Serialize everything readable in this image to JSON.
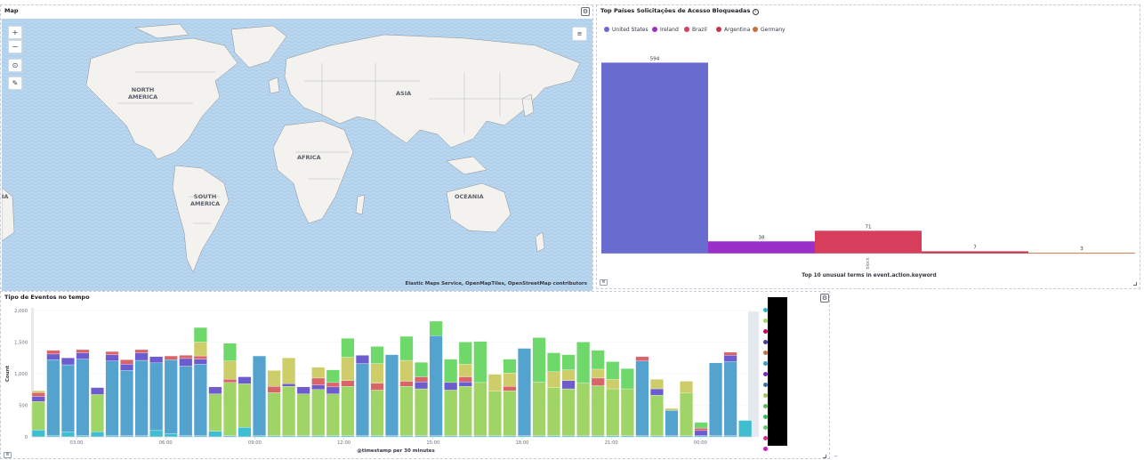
{
  "map_panel": {
    "title": "Map",
    "attribution": "Elastic Maps Service, OpenMapTiles, OpenStreetMap contributors",
    "continents": [
      "NORTH\nAMERICA",
      "ASIA",
      "AFRICA",
      "SOUTH\nAMERICA",
      "OCEANIA",
      "IA"
    ],
    "controls": {
      "zoom_in": "+",
      "zoom_out": "−",
      "reset": "⊙",
      "draw": "✎",
      "layers": "≡"
    }
  },
  "bar_panel": {
    "title": "Top Países Solicitações de Acesso Bloqueadas",
    "legend_icon": "≡",
    "colors": {
      "United States": "#6a6bcf",
      "Ireland": "#9b30c9",
      "Brazil": "#d63e5c",
      "Argentina": "#c8354c",
      "Germany": "#c7723c"
    }
  },
  "time_panel": {
    "title": "Tipo de Eventos no tempo",
    "legend_icon": "≡",
    "ylabel": "Count",
    "xlabel": "@timestamp per 30 minutes",
    "legend_colors": [
      "#2fb6c9",
      "#a3d95d",
      "#c10868",
      "#4a3a9c",
      "#c7723c",
      "#34a0c2",
      "#7a2bb8",
      "#3d6fb3",
      "#a8c84a",
      "#5ac15a",
      "#2fc05b",
      "#5cd06a",
      "#d12e91",
      "#c81ec4"
    ],
    "series_colors": {
      "teal": "#40bed1",
      "green": "#9fd467",
      "blue": "#54a3cf",
      "purple": "#6c5ccd",
      "red": "#d9646a",
      "olive": "#cdcd6a",
      "lime": "#6fd86b"
    }
  },
  "chart_data": [
    {
      "type": "bar",
      "title": "Top Países Solicitações de Acesso Bloqueadas",
      "xlabel": "Top 10 unusual terms in event.action.keyword",
      "categories": [
        "block"
      ],
      "series": [
        {
          "name": "United States",
          "values": [
            594
          ]
        },
        {
          "name": "Ireland",
          "values": [
            38
          ]
        },
        {
          "name": "Brazil",
          "values": [
            71
          ]
        },
        {
          "name": "Argentina",
          "values": [
            7
          ]
        },
        {
          "name": "Germany",
          "values": [
            3
          ]
        }
      ],
      "ylim": [
        0,
        620
      ]
    },
    {
      "type": "bar",
      "title": "Tipo de Eventos no tempo",
      "xlabel": "@timestamp per 30 minutes",
      "ylabel": "Count",
      "ylim": [
        0,
        2000
      ],
      "yticks": [
        "0",
        "500",
        "1,000",
        "1,500",
        "2,000"
      ],
      "xticks": [
        "03:00",
        "06:00",
        "09:00",
        "12:00",
        "15:00",
        "18:00",
        "21:00",
        "00:00"
      ],
      "stacked_bars": [
        {
          "teal": 110,
          "green": 450,
          "blue": 0,
          "purple": 80,
          "red": 60,
          "olive": 30,
          "lime": 0
        },
        {
          "teal": 20,
          "green": 0,
          "blue": 1200,
          "purple": 90,
          "red": 60,
          "olive": 0,
          "lime": 0
        },
        {
          "teal": 80,
          "green": 0,
          "blue": 1060,
          "purple": 110,
          "red": 0,
          "olive": 0,
          "lime": 0
        },
        {
          "teal": 20,
          "green": 0,
          "blue": 1210,
          "purple": 100,
          "red": 50,
          "olive": 0,
          "lime": 0
        },
        {
          "teal": 80,
          "green": 590,
          "blue": 0,
          "purple": 110,
          "red": 0,
          "olive": 0,
          "lime": 0
        },
        {
          "teal": 20,
          "green": 0,
          "blue": 1180,
          "purple": 100,
          "red": 50,
          "olive": 0,
          "lime": 0
        },
        {
          "teal": 20,
          "green": 0,
          "blue": 1030,
          "purple": 100,
          "red": 70,
          "olive": 0,
          "lime": 0
        },
        {
          "teal": 20,
          "green": 0,
          "blue": 1190,
          "purple": 120,
          "red": 50,
          "olive": 0,
          "lime": 0
        },
        {
          "teal": 100,
          "green": 0,
          "blue": 1070,
          "purple": 100,
          "red": 0,
          "olive": 0,
          "lime": 0
        },
        {
          "teal": 50,
          "green": 0,
          "blue": 1170,
          "purple": 0,
          "red": 60,
          "olive": 0,
          "lime": 0
        },
        {
          "teal": 20,
          "green": 0,
          "blue": 1100,
          "purple": 120,
          "red": 50,
          "olive": 0,
          "lime": 0
        },
        {
          "teal": 20,
          "green": 0,
          "blue": 1130,
          "purple": 80,
          "red": 50,
          "olive": 220,
          "lime": 230
        },
        {
          "teal": 90,
          "green": 590,
          "blue": 0,
          "purple": 110,
          "red": 0,
          "olive": 0,
          "lime": 0
        },
        {
          "teal": 20,
          "green": 840,
          "blue": 0,
          "purple": 0,
          "red": 50,
          "olive": 290,
          "lime": 280
        },
        {
          "teal": 150,
          "green": 690,
          "blue": 0,
          "purple": 110,
          "red": 0,
          "olive": 0,
          "lime": 0
        },
        {
          "teal": 20,
          "green": 0,
          "blue": 1260,
          "purple": 0,
          "red": 0,
          "olive": 0,
          "lime": 0
        },
        {
          "teal": 20,
          "green": 680,
          "blue": 0,
          "purple": 0,
          "red": 100,
          "olive": 250,
          "lime": 0
        },
        {
          "teal": 20,
          "green": 780,
          "blue": 0,
          "purple": 40,
          "red": 0,
          "olive": 410,
          "lime": 0
        },
        {
          "teal": 20,
          "green": 660,
          "blue": 0,
          "purple": 110,
          "red": 0,
          "olive": 0,
          "lime": 0
        },
        {
          "teal": 20,
          "green": 730,
          "blue": 0,
          "purple": 70,
          "red": 110,
          "olive": 170,
          "lime": 0
        },
        {
          "teal": 20,
          "green": 660,
          "blue": 0,
          "purple": 110,
          "red": 70,
          "olive": 0,
          "lime": 200
        },
        {
          "teal": 20,
          "green": 780,
          "blue": 0,
          "purple": 0,
          "red": 90,
          "olive": 370,
          "lime": 300
        },
        {
          "teal": 20,
          "green": 0,
          "blue": 1140,
          "purple": 130,
          "red": 0,
          "olive": 0,
          "lime": 0
        },
        {
          "teal": 20,
          "green": 720,
          "blue": 0,
          "purple": 0,
          "red": 110,
          "olive": 310,
          "lime": 270
        },
        {
          "teal": 20,
          "green": 0,
          "blue": 1280,
          "purple": 0,
          "red": 0,
          "olive": 0,
          "lime": 0
        },
        {
          "teal": 20,
          "green": 780,
          "blue": 0,
          "purple": 0,
          "red": 80,
          "olive": 330,
          "lime": 380
        },
        {
          "teal": 20,
          "green": 740,
          "blue": 0,
          "purple": 110,
          "red": 80,
          "olive": 0,
          "lime": 230
        },
        {
          "teal": 20,
          "green": 0,
          "blue": 1580,
          "purple": 0,
          "red": 0,
          "olive": 0,
          "lime": 230
        },
        {
          "teal": 20,
          "green": 720,
          "blue": 0,
          "purple": 120,
          "red": 0,
          "olive": 0,
          "lime": 370
        },
        {
          "teal": 20,
          "green": 780,
          "blue": 0,
          "purple": 70,
          "red": 80,
          "olive": 200,
          "lime": 350
        },
        {
          "teal": 20,
          "green": 840,
          "blue": 0,
          "purple": 0,
          "red": 0,
          "olive": 0,
          "lime": 650
        },
        {
          "teal": 20,
          "green": 700,
          "blue": 0,
          "purple": 0,
          "red": 0,
          "olive": 270,
          "lime": 0
        },
        {
          "teal": 20,
          "green": 710,
          "blue": 0,
          "purple": 0,
          "red": 70,
          "olive": 210,
          "lime": 220
        },
        {
          "teal": 20,
          "green": 0,
          "blue": 1380,
          "purple": 0,
          "red": 0,
          "olive": 0,
          "lime": 0
        },
        {
          "teal": 20,
          "green": 850,
          "blue": 0,
          "purple": 0,
          "red": 0,
          "olive": 0,
          "lime": 700
        },
        {
          "teal": 20,
          "green": 760,
          "blue": 0,
          "purple": 0,
          "red": 0,
          "olive": 250,
          "lime": 300
        },
        {
          "teal": 20,
          "green": 740,
          "blue": 0,
          "purple": 130,
          "red": 0,
          "olive": 170,
          "lime": 240
        },
        {
          "teal": 20,
          "green": 830,
          "blue": 0,
          "purple": 0,
          "red": 0,
          "olive": 0,
          "lime": 650
        },
        {
          "teal": 20,
          "green": 790,
          "blue": 0,
          "purple": 0,
          "red": 120,
          "olive": 140,
          "lime": 300
        },
        {
          "teal": 20,
          "green": 740,
          "blue": 0,
          "purple": 0,
          "red": 0,
          "olive": 150,
          "lime": 280
        },
        {
          "teal": 20,
          "green": 740,
          "blue": 0,
          "purple": 0,
          "red": 0,
          "olive": 0,
          "lime": 320
        },
        {
          "teal": 20,
          "green": 0,
          "blue": 1180,
          "purple": 0,
          "red": 70,
          "olive": 0,
          "lime": 0
        },
        {
          "teal": 20,
          "green": 640,
          "blue": 0,
          "purple": 100,
          "red": 0,
          "olive": 150,
          "lime": 0
        },
        {
          "teal": 20,
          "green": 0,
          "blue": 400,
          "purple": 0,
          "red": 0,
          "olive": 30,
          "lime": 0
        },
        {
          "teal": 20,
          "green": 680,
          "blue": 0,
          "purple": 0,
          "red": 0,
          "olive": 180,
          "lime": 0
        },
        {
          "teal": 20,
          "green": 0,
          "blue": 0,
          "purple": 80,
          "red": 40,
          "olive": 0,
          "lime": 90
        },
        {
          "teal": 20,
          "green": 0,
          "blue": 1150,
          "purple": 0,
          "red": 0,
          "olive": 0,
          "lime": 0
        },
        {
          "teal": 20,
          "green": 0,
          "blue": 1170,
          "purple": 100,
          "red": 50,
          "olive": 0,
          "lime": 0
        },
        {
          "teal": 260,
          "green": 0,
          "blue": 0,
          "purple": 0,
          "red": 0,
          "olive": 0,
          "lime": 0
        }
      ]
    }
  ]
}
